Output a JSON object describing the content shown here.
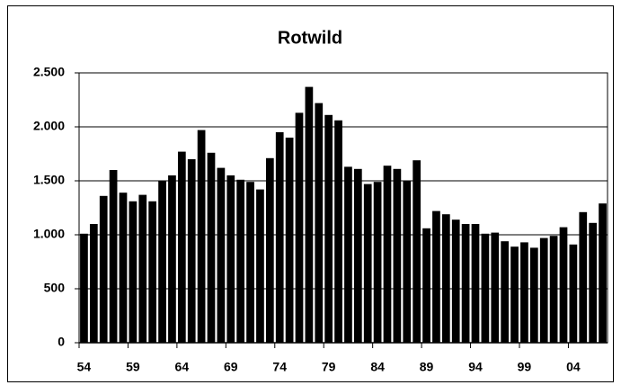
{
  "chart_data": {
    "type": "bar",
    "title": "Rotwild",
    "categories": [
      "54",
      null,
      null,
      null,
      null,
      "59",
      null,
      null,
      null,
      null,
      "64",
      null,
      null,
      null,
      null,
      "69",
      null,
      null,
      null,
      null,
      "74",
      null,
      null,
      null,
      null,
      "79",
      null,
      null,
      null,
      null,
      "84",
      null,
      null,
      null,
      null,
      "89",
      null,
      null,
      null,
      null,
      "94",
      null,
      null,
      null,
      null,
      "99",
      null,
      null,
      null,
      null,
      "04",
      null,
      null,
      null
    ],
    "values": [
      1010,
      1100,
      1360,
      1600,
      1390,
      1310,
      1370,
      1310,
      1500,
      1550,
      1770,
      1700,
      1970,
      1760,
      1620,
      1550,
      1510,
      1490,
      1420,
      1710,
      1950,
      1900,
      2130,
      2370,
      2220,
      2110,
      2060,
      1630,
      1610,
      1470,
      1490,
      1640,
      1610,
      1500,
      1690,
      1060,
      1220,
      1190,
      1140,
      1100,
      1100,
      1010,
      1020,
      940,
      890,
      930,
      880,
      970,
      990,
      1070,
      910,
      1210,
      1110,
      1290
    ],
    "color": "#000000",
    "ylim": [
      0,
      2500
    ],
    "yticks": [
      0,
      500,
      {
        "value": 1000,
        "label": "1.000"
      },
      {
        "value": 1500,
        "label": "1.500"
      },
      {
        "value": 2000,
        "label": "2.000"
      },
      {
        "value": 2500,
        "label": "2.500"
      }
    ],
    "grid": true
  }
}
